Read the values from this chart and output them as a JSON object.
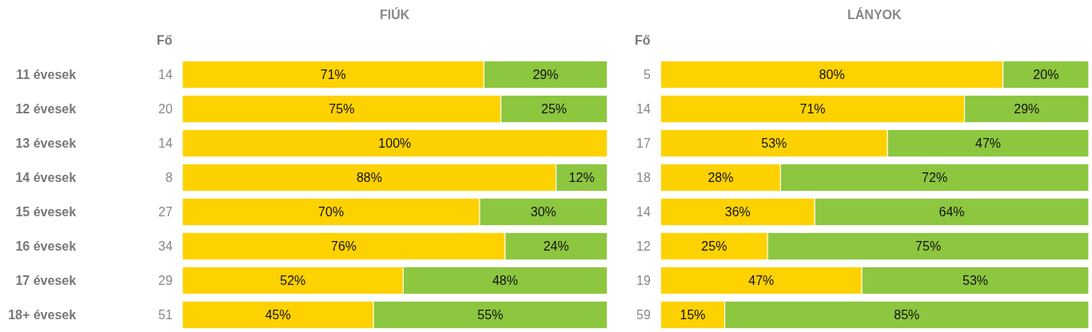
{
  "chart_data": [
    {
      "type": "bar",
      "orientation": "horizontal",
      "stacked": true,
      "title": "FIÚK",
      "categories": [
        "11 évesek",
        "12 évesek",
        "13 évesek",
        "14 évesek",
        "15 évesek",
        "16 évesek",
        "17 évesek",
        "18+ évesek"
      ],
      "series": [
        {
          "color": "#fed200",
          "values": [
            71,
            75,
            100,
            88,
            70,
            76,
            52,
            45
          ],
          "value_labels": [
            "71%",
            "75%",
            "100%",
            "88%",
            "70%",
            "76%",
            "52%",
            "45%"
          ]
        },
        {
          "color": "#8dc63f",
          "values": [
            29,
            25,
            null,
            12,
            30,
            24,
            48,
            55
          ],
          "value_labels": [
            "29%",
            "25%",
            null,
            "12%",
            "30%",
            "24%",
            "48%",
            "55%"
          ]
        }
      ],
      "annotations": [
        "Fő",
        "14",
        "20",
        "14",
        "8",
        "27",
        "34",
        "29",
        "51"
      ]
    },
    {
      "type": "bar",
      "orientation": "horizontal",
      "stacked": true,
      "title": "LÁNYOK",
      "categories": [
        null,
        null,
        null,
        null,
        null,
        null,
        null,
        null
      ],
      "series": [
        {
          "color": "#fed200",
          "values": [
            80,
            71,
            53,
            28,
            36,
            25,
            47,
            15
          ],
          "value_labels": [
            "80%",
            "71%",
            "53%",
            "28%",
            "36%",
            "25%",
            "47%",
            "15%"
          ]
        },
        {
          "color": "#8dc63f",
          "values": [
            20,
            29,
            47,
            72,
            64,
            75,
            53,
            85
          ],
          "value_labels": [
            "20%",
            "29%",
            "47%",
            "72%",
            "64%",
            "75%",
            "53%",
            "85%"
          ]
        }
      ],
      "annotations": [
        "Fő",
        "5",
        "14",
        "17",
        "18",
        "14",
        "12",
        "19",
        "59"
      ]
    }
  ]
}
